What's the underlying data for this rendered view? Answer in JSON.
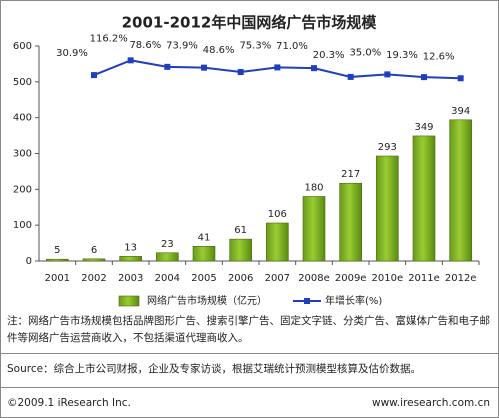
{
  "chart_data": {
    "type": "bar",
    "title": "2001-2012年中国网络广告市场规模",
    "categories": [
      "2001",
      "2002",
      "2003",
      "2004",
      "2005",
      "2006",
      "2007",
      "2008e",
      "2009e",
      "2010e",
      "2011e",
      "2012e"
    ],
    "series": [
      {
        "name": "网络广告市场规模（亿元）",
        "type": "bar",
        "color": "#99cc33",
        "values": [
          5,
          6,
          13,
          23,
          41,
          61,
          106,
          180,
          217,
          293,
          349,
          394
        ]
      },
      {
        "name": "年增长率(%)",
        "type": "line",
        "axis": "y2",
        "color": "#1f3fbf",
        "values": [
          null,
          30.9,
          116.2,
          78.6,
          73.9,
          48.6,
          75.3,
          71.0,
          20.3,
          35.0,
          19.3,
          12.6
        ],
        "value_labels": [
          null,
          "30.9%",
          "116.2%",
          "78.6%",
          "73.9%",
          "48.6%",
          "75.3%",
          "71.0%",
          "20.3%",
          "35.0%",
          "19.3%",
          "12.6%"
        ]
      }
    ],
    "ylim": [
      0,
      600
    ],
    "yticks": [
      0,
      100,
      200,
      300,
      400,
      500,
      600
    ],
    "y2lim": [
      -1043,
      199
    ],
    "grid": false,
    "legend": "bottom"
  },
  "footer": {
    "note": "注：网络广告市场规模包括品牌图形广告、搜索引擎广告、固定文字链、分类广告、富媒体广告和电子邮件等网络广告运营商收入，不包括渠道代理商收入。",
    "source": "Source：综合上市公司财报，企业及专家访谈，根据艾瑞统计预测模型核算及估价数据。",
    "copyright": "©2009.1 iResearch Inc.",
    "website": "www.iresearch.com.cn"
  }
}
